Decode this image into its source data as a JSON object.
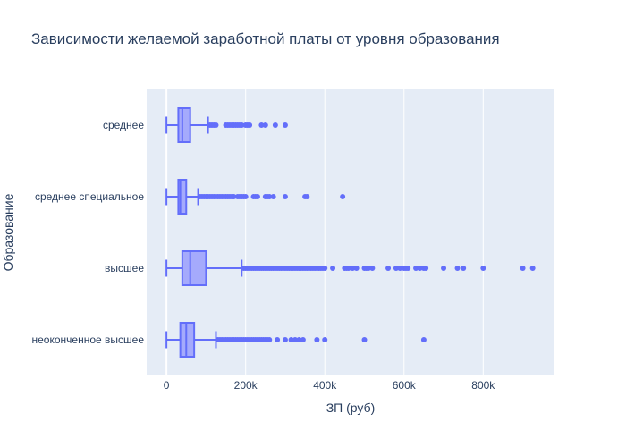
{
  "chart_data": {
    "type": "box",
    "orientation": "horizontal",
    "title": "Зависимости желаемой заработной платы от уровня образования",
    "xlabel": "ЗП (руб)",
    "ylabel": "Образование",
    "xlim": [
      -50000,
      980000
    ],
    "x_ticks": [
      0,
      200000,
      400000,
      600000,
      800000
    ],
    "x_tick_labels": [
      "0",
      "200k",
      "400k",
      "600k",
      "800k"
    ],
    "categories": [
      "среднее",
      "среднее специальное",
      "высшее",
      "неоконченное высшее"
    ],
    "grid": true,
    "legend": "none",
    "colors": {
      "box_line": "#636efa",
      "box_fill": "#a5aafc",
      "plot_bg": "#e5ecf6",
      "grid": "#ffffff",
      "text": "#2a3f5f"
    },
    "boxes": [
      {
        "category": "среднее",
        "min": 0,
        "q1": 30000,
        "median": 40000,
        "q3": 60000,
        "max": 105000,
        "outliers": [
          110000,
          115000,
          120000,
          125000,
          150000,
          155000,
          160000,
          165000,
          170000,
          175000,
          180000,
          185000,
          190000,
          200000,
          205000,
          210000,
          240000,
          250000,
          275000,
          300000
        ]
      },
      {
        "category": "среднее специальное",
        "min": 0,
        "q1": 30000,
        "median": 35000,
        "q3": 50000,
        "max": 80000,
        "outliers": [
          85000,
          90000,
          95000,
          100000,
          105000,
          110000,
          115000,
          120000,
          125000,
          130000,
          135000,
          140000,
          145000,
          150000,
          155000,
          160000,
          165000,
          170000,
          180000,
          185000,
          190000,
          195000,
          200000,
          220000,
          225000,
          230000,
          250000,
          255000,
          260000,
          270000,
          300000,
          350000,
          355000,
          445000
        ]
      },
      {
        "category": "высшее",
        "min": 0,
        "q1": 40000,
        "median": 60000,
        "q3": 100000,
        "max": 190000,
        "outliers": [
          195000,
          200000,
          205000,
          210000,
          215000,
          220000,
          225000,
          230000,
          235000,
          240000,
          245000,
          250000,
          255000,
          260000,
          265000,
          270000,
          275000,
          280000,
          285000,
          290000,
          295000,
          300000,
          305000,
          310000,
          315000,
          320000,
          325000,
          330000,
          335000,
          340000,
          345000,
          350000,
          355000,
          360000,
          365000,
          370000,
          375000,
          380000,
          385000,
          390000,
          395000,
          400000,
          420000,
          450000,
          455000,
          460000,
          470000,
          480000,
          500000,
          505000,
          510000,
          520000,
          560000,
          580000,
          590000,
          600000,
          605000,
          610000,
          630000,
          640000,
          650000,
          655000,
          700000,
          735000,
          750000,
          800000,
          900000,
          925000
        ]
      },
      {
        "category": "неоконченное высшее",
        "min": 0,
        "q1": 35000,
        "median": 50000,
        "q3": 70000,
        "max": 125000,
        "outliers": [
          130000,
          135000,
          140000,
          145000,
          150000,
          155000,
          160000,
          165000,
          170000,
          175000,
          180000,
          185000,
          190000,
          195000,
          200000,
          205000,
          210000,
          215000,
          220000,
          225000,
          230000,
          235000,
          240000,
          245000,
          250000,
          255000,
          260000,
          280000,
          300000,
          315000,
          325000,
          335000,
          345000,
          380000,
          400000,
          500000,
          650000
        ]
      }
    ]
  }
}
